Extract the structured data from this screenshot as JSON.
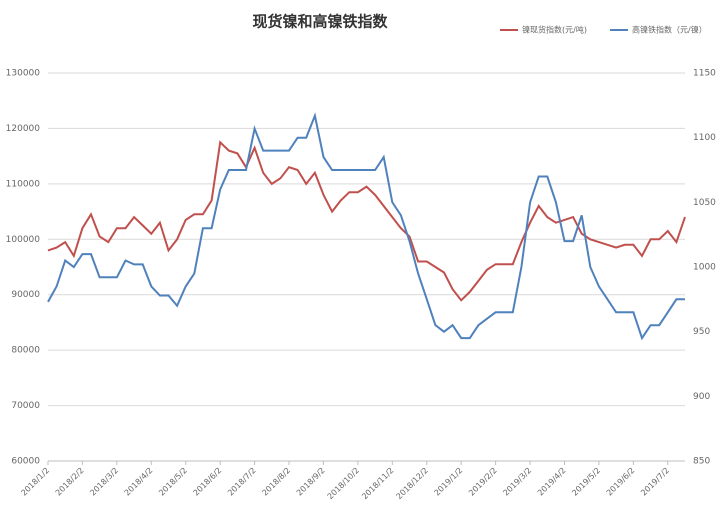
{
  "chart_data": {
    "type": "line",
    "title": "现货镍和高镍铁指数",
    "legend": "top-right",
    "grid": true,
    "categories": [
      "2018/1/2",
      null,
      null,
      null,
      "2018/2/2",
      null,
      null,
      null,
      "2018/3/2",
      null,
      null,
      null,
      "2018/4/2",
      null,
      null,
      null,
      "2018/5/2",
      null,
      null,
      null,
      "2018/6/2",
      null,
      null,
      null,
      "2018/7/2",
      null,
      null,
      null,
      "2018/8/2",
      null,
      null,
      null,
      "2018/9/2",
      null,
      null,
      null,
      "2018/10/2",
      null,
      null,
      null,
      "2018/11/2",
      null,
      null,
      null,
      "2018/12/2",
      null,
      null,
      null,
      "2019/1/2",
      null,
      null,
      null,
      "2019/2/2",
      null,
      null,
      null,
      "2019/3/2",
      null,
      null,
      null,
      "2019/4/2",
      null,
      null,
      null,
      "2019/5/2",
      null,
      null,
      null,
      "2019/6/2",
      null,
      null,
      null,
      "2019/7/2",
      null,
      null
    ],
    "ylim": [
      60000,
      130000
    ],
    "yticks": [
      60000,
      70000,
      80000,
      90000,
      100000,
      110000,
      120000,
      130000
    ],
    "y2lim": [
      850,
      1150
    ],
    "y2ticks": [
      850,
      900,
      950,
      1000,
      1050,
      1100,
      1150
    ],
    "series": [
      {
        "name": "镍现货指数(元/吨)",
        "color": "#c0504d",
        "values": [
          98000,
          98500,
          99500,
          97000,
          102000,
          104500,
          100500,
          99500,
          102000,
          102000,
          104000,
          102500,
          101000,
          103000,
          98000,
          100000,
          103500,
          104500,
          104500,
          107000,
          117500,
          116000,
          115500,
          113000,
          116500,
          112000,
          110000,
          111000,
          113000,
          112500,
          110000,
          112000,
          108000,
          105000,
          107000,
          108500,
          108500,
          109500,
          108000,
          106000,
          104000,
          102000,
          100500,
          96000,
          96000,
          95000,
          94000,
          91000,
          89000,
          90500,
          92500,
          94500,
          95500,
          95500,
          95500,
          99500,
          103000,
          106000,
          104000,
          103000,
          103500,
          104000,
          101000,
          100000,
          99500,
          99000,
          98500,
          99000,
          99000,
          97000,
          100000,
          100000,
          101500,
          99500,
          104000
        ]
      },
      {
        "name": "高镍铁指数（元/镍）",
        "color": "#4f81bd",
        "axis": "y2",
        "values": [
          973,
          985,
          1005,
          1000,
          1010,
          1010,
          992,
          992,
          992,
          1005,
          1002,
          1002,
          985,
          978,
          978,
          970,
          985,
          995,
          1030,
          1030,
          1060,
          1075,
          1075,
          1075,
          1107,
          1090,
          1090,
          1090,
          1090,
          1100,
          1100,
          1117,
          1085,
          1075,
          1075,
          1075,
          1075,
          1075,
          1075,
          1085,
          1050,
          1040,
          1020,
          995,
          975,
          955,
          950,
          955,
          945,
          945,
          955,
          960,
          965,
          965,
          965,
          1000,
          1050,
          1070,
          1070,
          1050,
          1020,
          1020,
          1040,
          1000,
          985,
          975,
          965,
          965,
          965,
          945,
          955,
          955,
          965,
          975,
          975
        ]
      }
    ]
  }
}
